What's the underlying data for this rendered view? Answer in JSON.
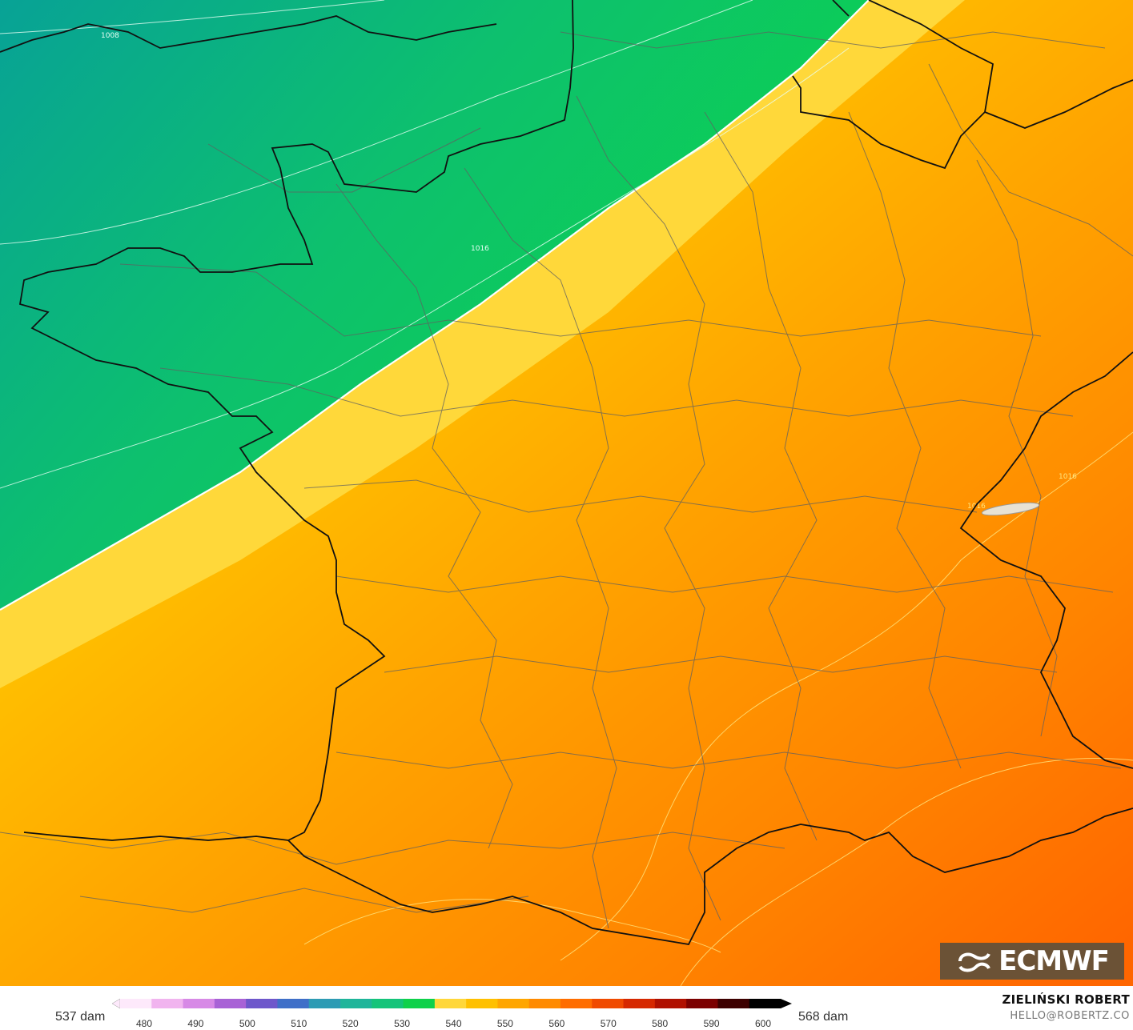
{
  "legend": {
    "left_label": "537 dam",
    "right_label": "568 dam",
    "ticks": [
      "480",
      "490",
      "500",
      "510",
      "520",
      "530",
      "540",
      "550",
      "560",
      "570",
      "580",
      "590",
      "600"
    ],
    "colors": [
      "#fde9fb",
      "#f1b4ef",
      "#d789e6",
      "#a862d6",
      "#6e57cb",
      "#3f6fc8",
      "#2d9bb4",
      "#1fb59a",
      "#15c47a",
      "#0fd14a",
      "#ffd73a",
      "#ffc000",
      "#ffa600",
      "#ff8a00",
      "#ff6d00",
      "#f04a00",
      "#d62800",
      "#b01000",
      "#7c0000",
      "#3d0000",
      "#000000"
    ]
  },
  "author": {
    "name": "ZIELIŃSKI ROBERT",
    "email": "HELLO@ROBERTZ.CO"
  },
  "logo": {
    "text": "ECMWF",
    "icon": "ecmwf-swirl-icon",
    "background": "#6b5236"
  },
  "isobars": [
    {
      "label": "1008"
    },
    {
      "label": "1016"
    },
    {
      "label": "1016"
    },
    {
      "label": "1016"
    }
  ],
  "colors": {
    "teal": "#0a9d95",
    "green": "#0dd24c",
    "yellow": "#ffd83a",
    "orange": "#ff9a00",
    "deep_orange": "#ff6c00"
  }
}
